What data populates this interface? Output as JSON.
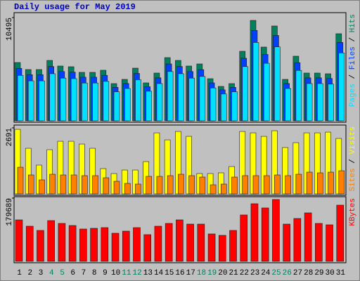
{
  "chart_data": [
    {
      "type": "bar",
      "title": "Daily usage for May 2019",
      "ylim": [
        0,
        10495
      ],
      "yticks": [
        10495
      ],
      "legend_separator": " / ",
      "series": [
        {
          "name": "Hits",
          "color": "#00805c",
          "values": [
            5926,
            5212,
            5212,
            6140,
            5569,
            5498,
            4927,
            4927,
            5141,
            3784,
            4213,
            5355,
            3856,
            4855,
            6426,
            6140,
            5569,
            5783,
            4284,
            3499,
            3784,
            7069,
            10210,
            7497,
            9639,
            4213,
            6569,
            4855,
            4855,
            4784,
            8854
          ]
        },
        {
          "name": "Files",
          "color": "#0040ff",
          "values": [
            5333,
            4691,
            4691,
            5526,
            5012,
            4948,
            4434,
            4434,
            4627,
            3406,
            3792,
            4820,
            3470,
            4370,
            5783,
            5526,
            5012,
            5205,
            3856,
            3149,
            3406,
            6362,
            9189,
            6747,
            8675,
            3792,
            5912,
            4370,
            4370,
            4306,
            7969
          ]
        },
        {
          "name": "Pages",
          "color": "#00e0ff",
          "values": [
            4622,
            4065,
            4065,
            4789,
            4344,
            4288,
            3843,
            3843,
            4010,
            2952,
            3286,
            4177,
            3008,
            3787,
            5012,
            4789,
            4344,
            4511,
            3342,
            2729,
            2952,
            5514,
            7964,
            5848,
            7518,
            3286,
            5124,
            3787,
            3787,
            3732,
            6906
          ]
        }
      ]
    },
    {
      "type": "bar",
      "ylim": [
        0,
        2691
      ],
      "yticks": [
        2691
      ],
      "legend_separator": " / ",
      "series": [
        {
          "name": "Visits",
          "color": "#ffff00",
          "values": [
            2631,
            1859,
            1173,
            1802,
            2145,
            2145,
            2031,
            1859,
            1030,
            829,
            972,
            972,
            1316,
            2488,
            2202,
            2545,
            2345,
            829,
            829,
            858,
            1115,
            2545,
            2488,
            2345,
            2574,
            1888,
            2088,
            2488,
            2488,
            2517,
            2259
          ]
        },
        {
          "name": "Sites",
          "color": "#ff8000",
          "values": [
            1087,
            772,
            572,
            801,
            772,
            772,
            744,
            744,
            658,
            515,
            429,
            400,
            715,
            715,
            744,
            801,
            744,
            686,
            372,
            400,
            686,
            744,
            744,
            744,
            772,
            744,
            801,
            887,
            858,
            887,
            944
          ]
        }
      ]
    },
    {
      "type": "bar",
      "ylim": [
        0,
        179689
      ],
      "yticks": [
        179689
      ],
      "categories": [
        "1",
        "2",
        "3",
        "4",
        "5",
        "6",
        "7",
        "8",
        "9",
        "10",
        "11",
        "12",
        "13",
        "14",
        "15",
        "16",
        "17",
        "18",
        "19",
        "20",
        "21",
        "22",
        "23",
        "24",
        "25",
        "26",
        "27",
        "28",
        "29",
        "30",
        "31"
      ],
      "category_colors": [
        "#000000",
        "#000000",
        "#000000",
        "#008060",
        "#008060",
        "#000000",
        "#000000",
        "#000000",
        "#000000",
        "#000000",
        "#008060",
        "#008060",
        "#000000",
        "#000000",
        "#000000",
        "#000000",
        "#000000",
        "#008060",
        "#008060",
        "#000000",
        "#000000",
        "#000000",
        "#000000",
        "#000000",
        "#008060",
        "#008060",
        "#000000",
        "#000000",
        "#000000",
        "#000000",
        "#000000"
      ],
      "series": [
        {
          "name": "KBytes",
          "color": "#ff0000",
          "values": [
            117823,
            99850,
            87868,
            115826,
            107838,
            101847,
            91862,
            93859,
            95856,
            79880,
            85871,
            95856,
            75886,
            99850,
            107838,
            117823,
            105841,
            105841,
            77883,
            73889,
            87868,
            131802,
            163754,
            151772,
            175736,
            105841,
            121817,
            137793,
            107838,
            103844,
            159760
          ]
        }
      ]
    }
  ]
}
